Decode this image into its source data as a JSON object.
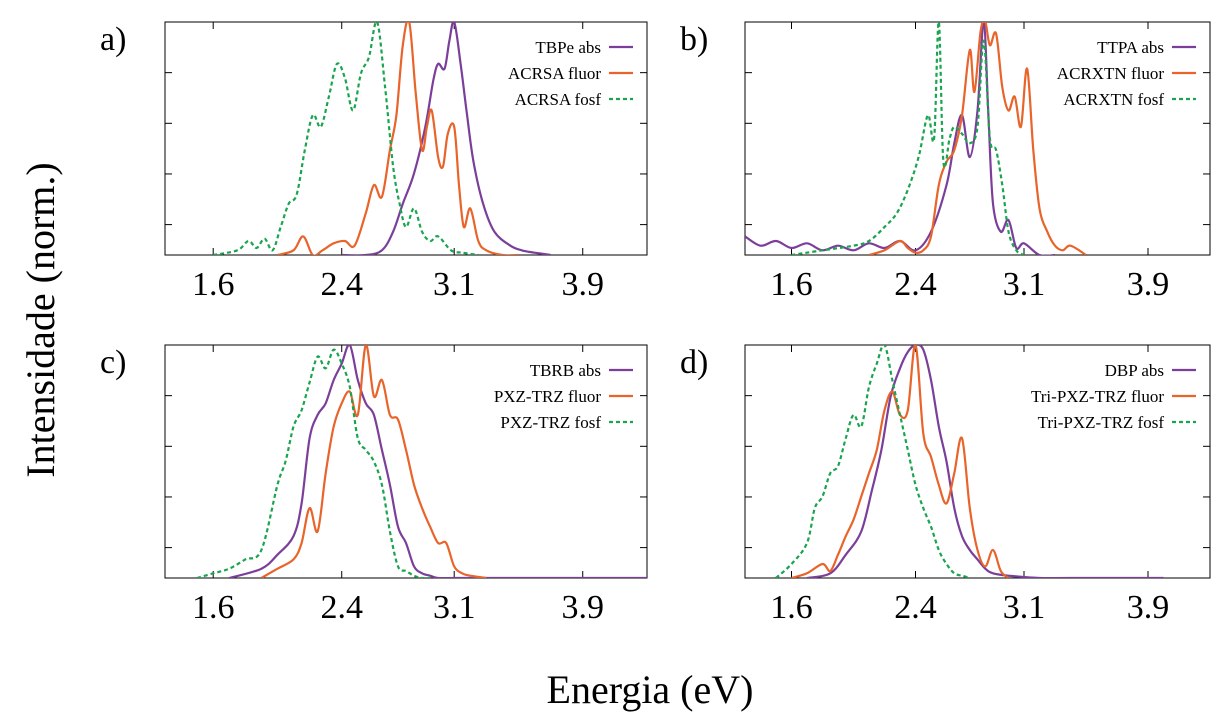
{
  "figure": {
    "ylabel": "Intensidade (norm.)",
    "xlabel": "Energia (eV)"
  },
  "chart_data": [
    {
      "type": "line",
      "panel": "a)",
      "xlim": [
        1.3,
        4.3
      ],
      "ylim": [
        0,
        1.0
      ],
      "xticks": [
        1.6,
        2.4,
        3.1,
        3.9
      ],
      "grid": false,
      "legend": "top-right",
      "series": [
        {
          "name": "TBPe abs",
          "color": "#7b3f9a",
          "dash": "solid",
          "x": [
            2.4,
            2.55,
            2.65,
            2.72,
            2.78,
            2.85,
            2.92,
            2.97,
            3.0,
            3.04,
            3.07,
            3.1,
            3.14,
            3.18,
            3.22,
            3.28,
            3.35,
            3.45,
            3.52,
            3.6,
            3.7
          ],
          "y": [
            0.0,
            0.0,
            0.02,
            0.1,
            0.22,
            0.35,
            0.55,
            0.75,
            0.82,
            0.8,
            0.92,
            1.0,
            0.82,
            0.6,
            0.4,
            0.22,
            0.1,
            0.04,
            0.02,
            0.01,
            0.0
          ]
        },
        {
          "name": "ACRSA fluor",
          "color": "#e8642a",
          "dash": "solid",
          "x": [
            2.0,
            2.1,
            2.16,
            2.22,
            2.28,
            2.35,
            2.42,
            2.48,
            2.55,
            2.6,
            2.65,
            2.7,
            2.74,
            2.78,
            2.82,
            2.86,
            2.9,
            2.93,
            2.96,
            3.0,
            3.03,
            3.06,
            3.1,
            3.13,
            3.16,
            3.2,
            3.25,
            3.3,
            3.4,
            3.5
          ],
          "y": [
            0.0,
            0.02,
            0.08,
            0.0,
            0.02,
            0.05,
            0.06,
            0.04,
            0.18,
            0.3,
            0.25,
            0.45,
            0.6,
            0.9,
            1.0,
            0.7,
            0.45,
            0.55,
            0.62,
            0.42,
            0.38,
            0.52,
            0.55,
            0.3,
            0.12,
            0.2,
            0.06,
            0.02,
            0.0,
            0.0
          ],
          "note": "estimated"
        },
        {
          "name": "ACRSA fosf",
          "color": "#1aa44f",
          "dash": "dashed",
          "x": [
            1.6,
            1.75,
            1.82,
            1.87,
            1.92,
            1.97,
            2.02,
            2.07,
            2.12,
            2.17,
            2.22,
            2.27,
            2.32,
            2.37,
            2.42,
            2.47,
            2.52,
            2.57,
            2.62,
            2.67,
            2.72,
            2.76,
            2.8,
            2.85,
            2.9,
            2.95,
            3.0,
            3.08,
            3.15,
            3.25
          ],
          "y": [
            0.0,
            0.02,
            0.06,
            0.03,
            0.07,
            0.02,
            0.12,
            0.22,
            0.26,
            0.45,
            0.6,
            0.55,
            0.68,
            0.82,
            0.76,
            0.62,
            0.78,
            0.85,
            1.0,
            0.72,
            0.38,
            0.22,
            0.12,
            0.2,
            0.1,
            0.06,
            0.08,
            0.02,
            0.01,
            0.0
          ],
          "note": "estimated"
        }
      ]
    },
    {
      "type": "line",
      "panel": "b)",
      "xlim": [
        1.3,
        4.3
      ],
      "ylim": [
        0,
        1.0
      ],
      "xticks": [
        1.6,
        2.4,
        3.1,
        3.9
      ],
      "grid": false,
      "legend": "top-right",
      "series": [
        {
          "name": "TTPA abs",
          "color": "#7b3f9a",
          "dash": "solid",
          "x": [
            1.3,
            1.4,
            1.5,
            1.6,
            1.7,
            1.8,
            1.9,
            2.0,
            2.1,
            2.2,
            2.3,
            2.4,
            2.5,
            2.6,
            2.65,
            2.7,
            2.75,
            2.8,
            2.84,
            2.87,
            2.9,
            2.95,
            3.0,
            3.05,
            3.1,
            3.2,
            3.3
          ],
          "y": [
            0.08,
            0.04,
            0.06,
            0.03,
            0.05,
            0.02,
            0.04,
            0.02,
            0.05,
            0.03,
            0.06,
            0.02,
            0.1,
            0.3,
            0.48,
            0.6,
            0.42,
            0.62,
            1.0,
            0.6,
            0.22,
            0.1,
            0.15,
            0.03,
            0.05,
            0.0,
            0.0
          ],
          "note": "estimated"
        },
        {
          "name": "ACRXTN fluor",
          "color": "#e8642a",
          "dash": "solid",
          "x": [
            2.1,
            2.2,
            2.3,
            2.35,
            2.4,
            2.45,
            2.5,
            2.55,
            2.6,
            2.65,
            2.7,
            2.75,
            2.78,
            2.82,
            2.85,
            2.88,
            2.92,
            2.96,
            3.0,
            3.04,
            3.08,
            3.12,
            3.16,
            3.2,
            3.25,
            3.3,
            3.35,
            3.4,
            3.5
          ],
          "y": [
            0.0,
            0.02,
            0.06,
            0.03,
            0.01,
            0.02,
            0.08,
            0.3,
            0.4,
            0.45,
            0.6,
            0.88,
            0.7,
            0.96,
            1.0,
            0.9,
            0.95,
            0.72,
            0.62,
            0.68,
            0.55,
            0.8,
            0.45,
            0.2,
            0.1,
            0.04,
            0.02,
            0.04,
            0.0
          ],
          "note": "estimated"
        },
        {
          "name": "ACRXTN fosf",
          "color": "#1aa44f",
          "dash": "dashed",
          "x": [
            1.6,
            1.8,
            2.0,
            2.1,
            2.2,
            2.28,
            2.35,
            2.42,
            2.48,
            2.52,
            2.55,
            2.58,
            2.62,
            2.65,
            2.7,
            2.75,
            2.8,
            2.84,
            2.88,
            2.92,
            2.96,
            3.0,
            3.05,
            3.1
          ],
          "y": [
            0.0,
            0.02,
            0.04,
            0.06,
            0.12,
            0.18,
            0.28,
            0.42,
            0.6,
            0.5,
            1.0,
            0.4,
            0.5,
            0.55,
            0.52,
            0.48,
            0.55,
            0.92,
            0.5,
            0.45,
            0.3,
            0.1,
            0.02,
            0.0
          ],
          "note": "estimated"
        }
      ]
    },
    {
      "type": "line",
      "panel": "c)",
      "xlim": [
        1.3,
        4.3
      ],
      "ylim": [
        0,
        1.0
      ],
      "xticks": [
        1.6,
        2.4,
        3.1,
        3.9
      ],
      "grid": false,
      "legend": "top-right",
      "series": [
        {
          "name": "TBRB abs",
          "color": "#7b3f9a",
          "dash": "solid",
          "x": [
            1.7,
            1.9,
            2.0,
            2.1,
            2.15,
            2.2,
            2.25,
            2.3,
            2.35,
            2.4,
            2.45,
            2.5,
            2.55,
            2.6,
            2.65,
            2.7,
            2.75,
            2.8,
            2.85,
            2.9,
            2.95,
            3.0,
            3.1,
            3.3,
            4.3
          ],
          "y": [
            0.0,
            0.04,
            0.1,
            0.18,
            0.32,
            0.6,
            0.7,
            0.75,
            0.85,
            0.92,
            1.0,
            0.85,
            0.75,
            0.7,
            0.55,
            0.4,
            0.22,
            0.15,
            0.05,
            0.02,
            0.01,
            0.0,
            0.0,
            0.0,
            0.0
          ],
          "note": "estimated"
        },
        {
          "name": "PXZ-TRZ fluor",
          "color": "#e8642a",
          "dash": "solid",
          "x": [
            1.9,
            2.0,
            2.1,
            2.15,
            2.2,
            2.25,
            2.3,
            2.35,
            2.4,
            2.45,
            2.5,
            2.55,
            2.6,
            2.65,
            2.7,
            2.75,
            2.8,
            2.85,
            2.9,
            2.95,
            3.0,
            3.05,
            3.1,
            3.15,
            3.2,
            3.3
          ],
          "y": [
            0.0,
            0.04,
            0.08,
            0.15,
            0.3,
            0.2,
            0.45,
            0.65,
            0.75,
            0.8,
            0.7,
            1.0,
            0.78,
            0.85,
            0.7,
            0.68,
            0.55,
            0.4,
            0.3,
            0.22,
            0.15,
            0.15,
            0.05,
            0.02,
            0.01,
            0.0
          ],
          "note": "estimated"
        },
        {
          "name": "PXZ-TRZ fosf",
          "color": "#1aa44f",
          "dash": "dashed",
          "x": [
            1.5,
            1.6,
            1.7,
            1.8,
            1.9,
            2.0,
            2.05,
            2.1,
            2.15,
            2.2,
            2.25,
            2.3,
            2.35,
            2.4,
            2.45,
            2.5,
            2.55,
            2.6,
            2.65,
            2.7,
            2.75,
            2.8,
            2.85,
            2.9,
            2.95
          ],
          "y": [
            0.0,
            0.02,
            0.04,
            0.08,
            0.12,
            0.4,
            0.5,
            0.65,
            0.72,
            0.84,
            0.95,
            0.9,
            0.98,
            0.92,
            0.82,
            0.6,
            0.55,
            0.5,
            0.4,
            0.2,
            0.05,
            0.03,
            0.01,
            0.0,
            0.0
          ],
          "note": "estimated"
        }
      ]
    },
    {
      "type": "line",
      "panel": "d)",
      "xlim": [
        1.3,
        4.3
      ],
      "ylim": [
        0,
        1.0
      ],
      "xticks": [
        1.6,
        2.4,
        3.1,
        3.9
      ],
      "grid": false,
      "legend": "top-right",
      "series": [
        {
          "name": "DBP abs",
          "color": "#7b3f9a",
          "dash": "solid",
          "x": [
            1.7,
            1.85,
            1.95,
            2.05,
            2.12,
            2.18,
            2.24,
            2.3,
            2.35,
            2.4,
            2.45,
            2.5,
            2.55,
            2.6,
            2.65,
            2.7,
            2.75,
            2.8,
            2.85,
            2.9,
            3.0,
            3.2,
            3.4,
            4.0
          ],
          "y": [
            0.0,
            0.02,
            0.1,
            0.2,
            0.38,
            0.55,
            0.78,
            0.9,
            0.97,
            1.0,
            0.98,
            0.85,
            0.65,
            0.5,
            0.3,
            0.18,
            0.12,
            0.08,
            0.04,
            0.02,
            0.01,
            0.0,
            0.0,
            0.0
          ],
          "note": "estimated"
        },
        {
          "name": "Tri-PXZ-TRZ fluor",
          "color": "#e8642a",
          "dash": "solid",
          "x": [
            1.6,
            1.7,
            1.8,
            1.85,
            1.9,
            1.95,
            2.0,
            2.05,
            2.1,
            2.15,
            2.2,
            2.25,
            2.3,
            2.35,
            2.4,
            2.45,
            2.5,
            2.55,
            2.6,
            2.65,
            2.7,
            2.75,
            2.8,
            2.85,
            2.9,
            2.95,
            3.0
          ],
          "y": [
            0.0,
            0.02,
            0.06,
            0.03,
            0.1,
            0.18,
            0.25,
            0.35,
            0.45,
            0.55,
            0.72,
            0.8,
            0.7,
            0.72,
            1.0,
            0.62,
            0.52,
            0.4,
            0.32,
            0.45,
            0.6,
            0.3,
            0.12,
            0.05,
            0.12,
            0.03,
            0.0
          ],
          "note": "estimated"
        },
        {
          "name": "Tri-PXZ-TRZ fosf",
          "color": "#1aa44f",
          "dash": "dashed",
          "x": [
            1.5,
            1.6,
            1.7,
            1.75,
            1.8,
            1.85,
            1.9,
            1.95,
            2.0,
            2.05,
            2.1,
            2.15,
            2.2,
            2.25,
            2.3,
            2.35,
            2.4,
            2.45,
            2.5,
            2.55,
            2.6,
            2.65,
            2.7,
            2.75
          ],
          "y": [
            0.0,
            0.06,
            0.15,
            0.3,
            0.35,
            0.45,
            0.48,
            0.6,
            0.7,
            0.65,
            0.82,
            0.92,
            1.0,
            0.85,
            0.7,
            0.55,
            0.4,
            0.3,
            0.22,
            0.12,
            0.06,
            0.02,
            0.01,
            0.0
          ],
          "note": "estimated"
        }
      ]
    }
  ]
}
